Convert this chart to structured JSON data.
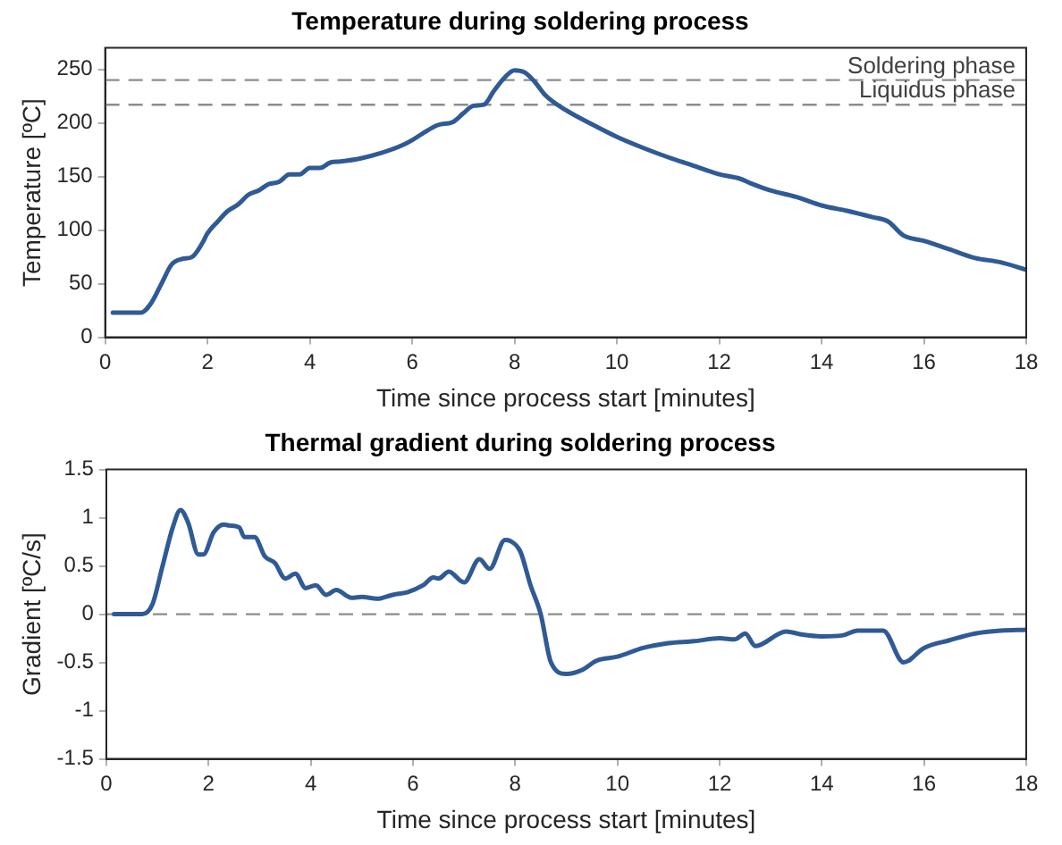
{
  "chart_data": [
    {
      "type": "line",
      "title": "Temperature during soldering process",
      "xlabel": "Time since process start [minutes]",
      "ylabel": "Temperature [ºC]",
      "xlim": [
        0,
        18
      ],
      "xticks": [
        0,
        2,
        4,
        6,
        8,
        10,
        12,
        14,
        16,
        18
      ],
      "ylim": [
        0,
        270
      ],
      "yticks": [
        0,
        50,
        100,
        150,
        200,
        250
      ],
      "grid": false,
      "legend": false,
      "marker": "none",
      "line_style": "solid",
      "ref_lines": [
        {
          "axis": "y",
          "value": 240,
          "label": "Soldering phase",
          "color": "#8c8c8c",
          "line_style": "dashed"
        },
        {
          "axis": "y",
          "value": 217,
          "label": "Liquidus phase",
          "color": "#8c8c8c",
          "line_style": "dashed"
        }
      ],
      "series": [
        {
          "color": "#2f5a96",
          "x": [
            0.15,
            0.7,
            0.9,
            1.1,
            1.3,
            1.5,
            1.7,
            1.9,
            2.0,
            2.2,
            2.4,
            2.6,
            2.8,
            3.0,
            3.2,
            3.4,
            3.6,
            3.8,
            4.0,
            4.2,
            4.4,
            4.6,
            5.0,
            5.4,
            5.8,
            6.0,
            6.2,
            6.5,
            6.8,
            7.0,
            7.2,
            7.4,
            7.6,
            7.8,
            8.0,
            8.2,
            8.4,
            8.6,
            9.0,
            9.5,
            10,
            10.5,
            11,
            11.5,
            12,
            12.4,
            12.6,
            13,
            13.5,
            14,
            14.5,
            15,
            15.3,
            15.6,
            16,
            16.5,
            17,
            17.5,
            18
          ],
          "values": [
            23,
            23,
            32,
            50,
            68,
            73,
            75,
            88,
            97,
            108,
            118,
            124,
            133,
            137,
            143,
            145,
            152,
            152,
            158,
            158,
            163,
            164,
            167,
            172,
            179,
            184,
            190,
            198,
            201,
            209,
            216,
            217,
            230,
            242,
            249,
            247,
            238,
            226,
            212,
            199,
            187,
            177,
            168,
            160,
            152,
            148,
            144,
            137,
            131,
            123,
            118,
            112,
            108,
            95,
            90,
            82,
            74,
            70,
            63
          ]
        }
      ]
    },
    {
      "type": "line",
      "title": "Thermal gradient during soldering process",
      "xlabel": "Time since process start [minutes]",
      "ylabel": "Gradient [ºC/s]",
      "xlim": [
        0,
        18
      ],
      "xticks": [
        0,
        2,
        4,
        6,
        8,
        10,
        12,
        14,
        16,
        18
      ],
      "ylim": [
        -1.5,
        1.5
      ],
      "yticks": [
        -1.5,
        -1,
        -0.5,
        0,
        0.5,
        1,
        1.5
      ],
      "grid": false,
      "legend": false,
      "marker": "none",
      "line_style": "solid",
      "ref_lines": [
        {
          "axis": "y",
          "value": 0,
          "color": "#8c8c8c",
          "line_style": "dashed"
        }
      ],
      "series": [
        {
          "color": "#2f5a96",
          "x": [
            0.15,
            0.7,
            0.9,
            1.1,
            1.3,
            1.45,
            1.6,
            1.8,
            1.9,
            2.1,
            2.3,
            2.4,
            2.6,
            2.7,
            2.9,
            3.1,
            3.3,
            3.5,
            3.7,
            3.9,
            4.1,
            4.3,
            4.5,
            4.8,
            5.0,
            5.3,
            5.6,
            5.9,
            6.2,
            6.4,
            6.5,
            6.7,
            7.0,
            7.3,
            7.5,
            7.8,
            7.9,
            8.1,
            8.3,
            8.5,
            8.7,
            9.0,
            9.3,
            9.6,
            10,
            10.5,
            11,
            11.5,
            12,
            12.3,
            12.5,
            12.7,
            13.3,
            13.6,
            14,
            14.4,
            14.7,
            15.2,
            15.6,
            16,
            16.5,
            17,
            17.5,
            18
          ],
          "values": [
            0,
            0,
            0.1,
            0.5,
            0.9,
            1.08,
            0.95,
            0.62,
            0.62,
            0.85,
            0.93,
            0.92,
            0.9,
            0.8,
            0.8,
            0.6,
            0.53,
            0.37,
            0.42,
            0.27,
            0.3,
            0.2,
            0.25,
            0.17,
            0.18,
            0.16,
            0.2,
            0.23,
            0.3,
            0.38,
            0.37,
            0.44,
            0.33,
            0.57,
            0.47,
            0.77,
            0.76,
            0.65,
            0.3,
            0,
            -0.5,
            -0.62,
            -0.58,
            -0.48,
            -0.44,
            -0.35,
            -0.3,
            -0.28,
            -0.25,
            -0.26,
            -0.2,
            -0.33,
            -0.18,
            -0.21,
            -0.23,
            -0.22,
            -0.17,
            -0.17,
            -0.5,
            -0.35,
            -0.27,
            -0.2,
            -0.17,
            -0.16
          ]
        }
      ]
    }
  ]
}
